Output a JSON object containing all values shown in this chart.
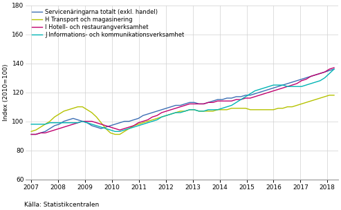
{
  "title": "",
  "ylabel": "Index (2010=100)",
  "source": "Källa: Statistikcentralen",
  "ylim": [
    60,
    180
  ],
  "yticks": [
    60,
    80,
    100,
    120,
    140,
    160,
    180
  ],
  "xlim": [
    2006.8,
    2018.4
  ],
  "xticks": [
    2007,
    2008,
    2009,
    2010,
    2011,
    2012,
    2013,
    2014,
    2015,
    2016,
    2017,
    2018
  ],
  "legend_labels": [
    "Servicenäringarna totalt (exkl. handel)",
    "H Transport och magasinering",
    "I Hotell- och restaurangverksamhet",
    "J Informations- och kommunikationsverksamhet"
  ],
  "colors": [
    "#3c6eb4",
    "#b5c200",
    "#c0006e",
    "#00b4b4"
  ],
  "series": {
    "total": [
      91,
      91,
      92,
      93,
      95,
      97,
      98,
      100,
      101,
      102,
      101,
      100,
      99,
      97,
      96,
      95,
      96,
      97,
      98,
      99,
      100,
      100,
      101,
      102,
      104,
      105,
      106,
      107,
      108,
      109,
      110,
      111,
      111,
      112,
      113,
      113,
      112,
      112,
      113,
      114,
      115,
      115,
      116,
      116,
      117,
      117,
      118,
      118,
      119,
      120,
      121,
      122,
      123,
      124,
      125,
      126,
      127,
      128,
      129,
      130,
      131,
      132,
      133,
      134,
      135,
      136
    ],
    "transport": [
      93,
      94,
      96,
      98,
      100,
      103,
      105,
      107,
      108,
      109,
      110,
      110,
      108,
      106,
      103,
      99,
      95,
      92,
      91,
      91,
      93,
      95,
      97,
      98,
      99,
      100,
      101,
      102,
      103,
      104,
      105,
      106,
      107,
      107,
      108,
      108,
      107,
      107,
      107,
      107,
      108,
      108,
      108,
      109,
      109,
      109,
      109,
      108,
      108,
      108,
      108,
      108,
      108,
      109,
      109,
      110,
      110,
      111,
      112,
      113,
      114,
      115,
      116,
      117,
      118,
      118
    ],
    "hotell": [
      91,
      91,
      92,
      92,
      93,
      94,
      95,
      96,
      97,
      98,
      99,
      100,
      100,
      100,
      99,
      98,
      97,
      96,
      95,
      94,
      95,
      96,
      97,
      99,
      100,
      101,
      103,
      104,
      106,
      107,
      108,
      109,
      110,
      111,
      112,
      112,
      112,
      112,
      113,
      113,
      114,
      114,
      114,
      114,
      115,
      115,
      116,
      116,
      117,
      118,
      119,
      120,
      121,
      122,
      123,
      124,
      125,
      126,
      128,
      129,
      131,
      132,
      133,
      134,
      136,
      137
    ],
    "ikt": [
      98,
      98,
      98,
      98,
      99,
      99,
      99,
      99,
      99,
      99,
      99,
      100,
      99,
      98,
      97,
      96,
      95,
      94,
      93,
      93,
      94,
      95,
      96,
      97,
      98,
      99,
      100,
      101,
      103,
      104,
      105,
      106,
      106,
      107,
      108,
      108,
      107,
      107,
      108,
      108,
      108,
      109,
      110,
      111,
      113,
      115,
      117,
      119,
      121,
      122,
      123,
      124,
      125,
      125,
      125,
      124,
      124,
      124,
      124,
      125,
      126,
      127,
      128,
      130,
      133,
      136
    ]
  },
  "n_points": 66,
  "start_year": 2007.0,
  "end_year": 2018.25,
  "linewidth": 1.0,
  "tick_fontsize": 6.5,
  "ylabel_fontsize": 6.5,
  "legend_fontsize": 6.0,
  "source_fontsize": 6.5,
  "grid_color": "#d0d0d0",
  "grid_linewidth": 0.5
}
